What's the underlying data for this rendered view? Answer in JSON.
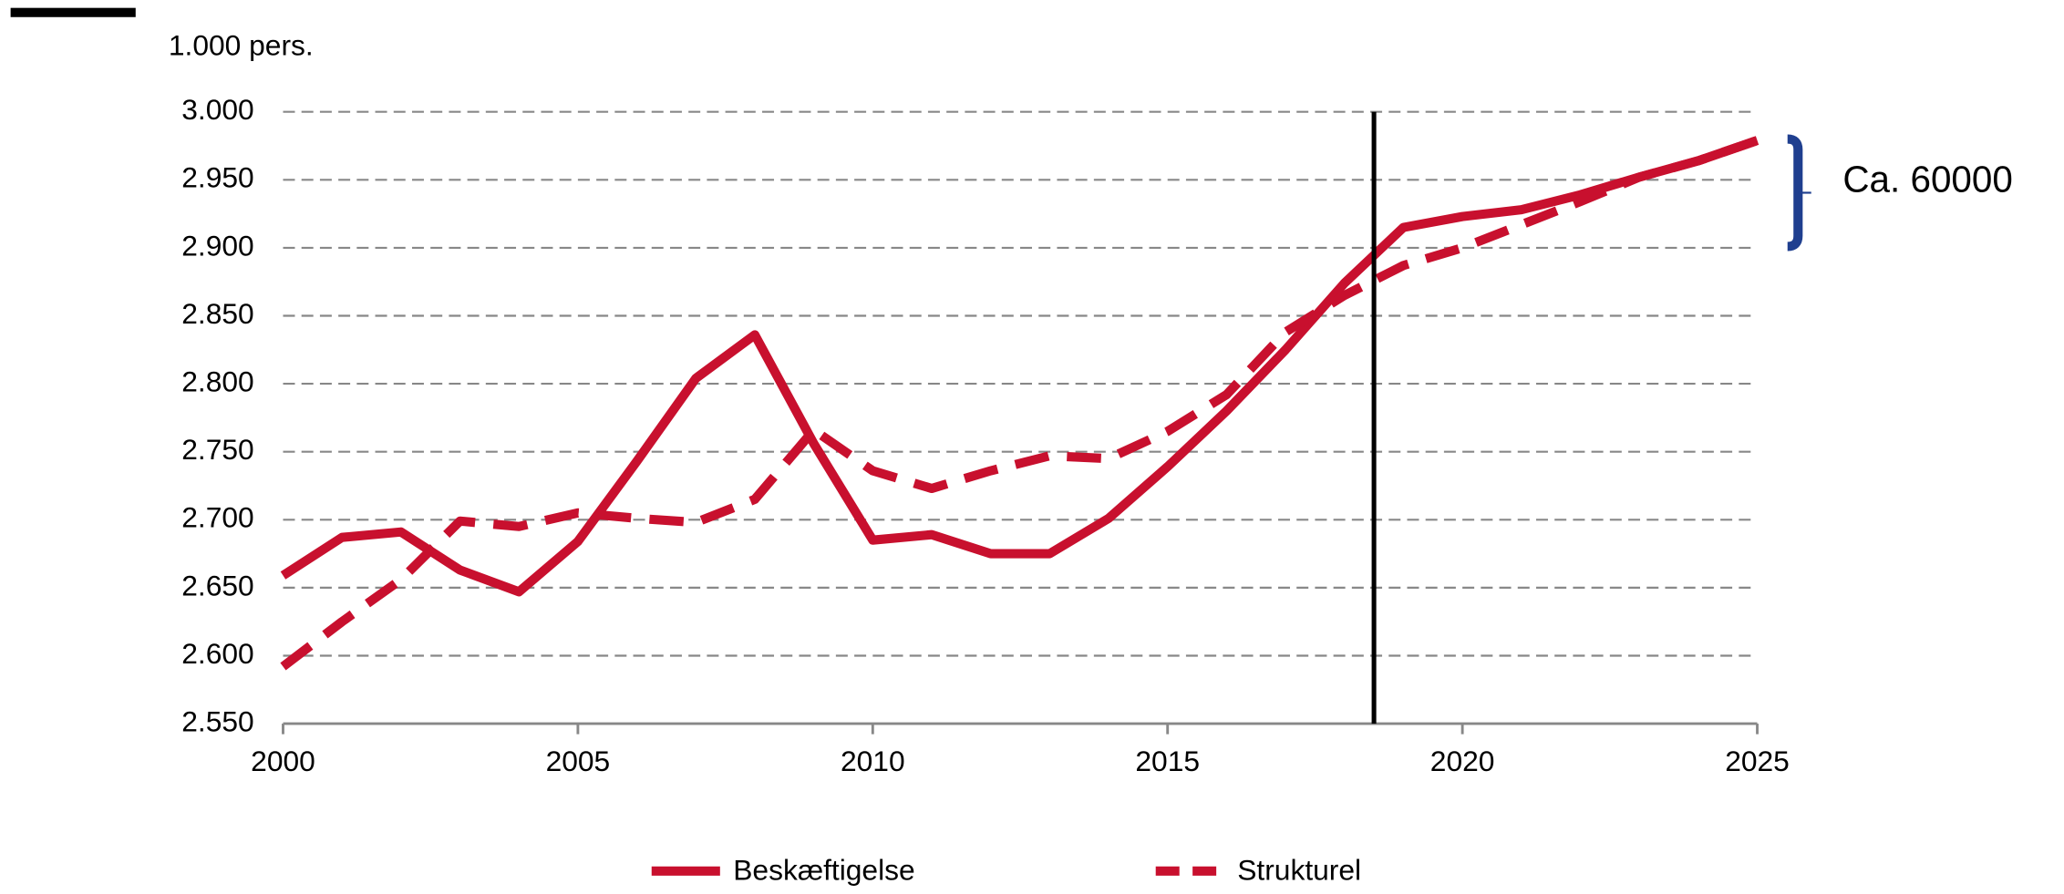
{
  "chart_data": {
    "type": "line",
    "y_unit_label": "1.000 pers.",
    "x": [
      2000,
      2001,
      2002,
      2003,
      2004,
      2005,
      2006,
      2007,
      2008,
      2009,
      2010,
      2011,
      2012,
      2013,
      2014,
      2015,
      2016,
      2017,
      2018,
      2019,
      2020,
      2021,
      2022,
      2023,
      2024,
      2025
    ],
    "series": [
      {
        "name": "Beskæftigelse",
        "color": "#c8102e",
        "dash": false,
        "values": [
          2659,
          2687,
          2691,
          2663,
          2647,
          2684,
          2743,
          2804,
          2836,
          2756,
          2685,
          2689,
          2675,
          2675,
          2701,
          2739,
          2780,
          2825,
          2874,
          2915,
          2923,
          2928,
          2939,
          2952,
          2964,
          2979
        ]
      },
      {
        "name": "Strukturel",
        "color": "#c8102e",
        "dash": true,
        "values": [
          2592,
          2625,
          2656,
          2699,
          2695,
          2705,
          2701,
          2698,
          2715,
          2766,
          2736,
          2723,
          2736,
          2747,
          2745,
          2765,
          2792,
          2838,
          2865,
          2887,
          2900,
          2917,
          2934,
          2952,
          2964,
          2979
        ]
      }
    ],
    "xlim": [
      2000,
      2025
    ],
    "xticks": [
      2000,
      2005,
      2010,
      2015,
      2020,
      2025
    ],
    "ylim": [
      2550,
      3000
    ],
    "yticks": [
      {
        "value": 2550,
        "label": "2.550"
      },
      {
        "value": 2600,
        "label": "2.600"
      },
      {
        "value": 2650,
        "label": "2.650"
      },
      {
        "value": 2700,
        "label": "2.700"
      },
      {
        "value": 2750,
        "label": "2.750"
      },
      {
        "value": 2800,
        "label": "2.800"
      },
      {
        "value": 2850,
        "label": "2.850"
      },
      {
        "value": 2900,
        "label": "2.900"
      },
      {
        "value": 2950,
        "label": "2.950"
      },
      {
        "value": 3000,
        "label": "3.000"
      }
    ],
    "grid": true,
    "vline": 2018.5,
    "bracket": {
      "range": [
        2901,
        2980
      ],
      "label": "Ca. 60000",
      "color": "#1f3f8f"
    },
    "legend": "bottom"
  }
}
